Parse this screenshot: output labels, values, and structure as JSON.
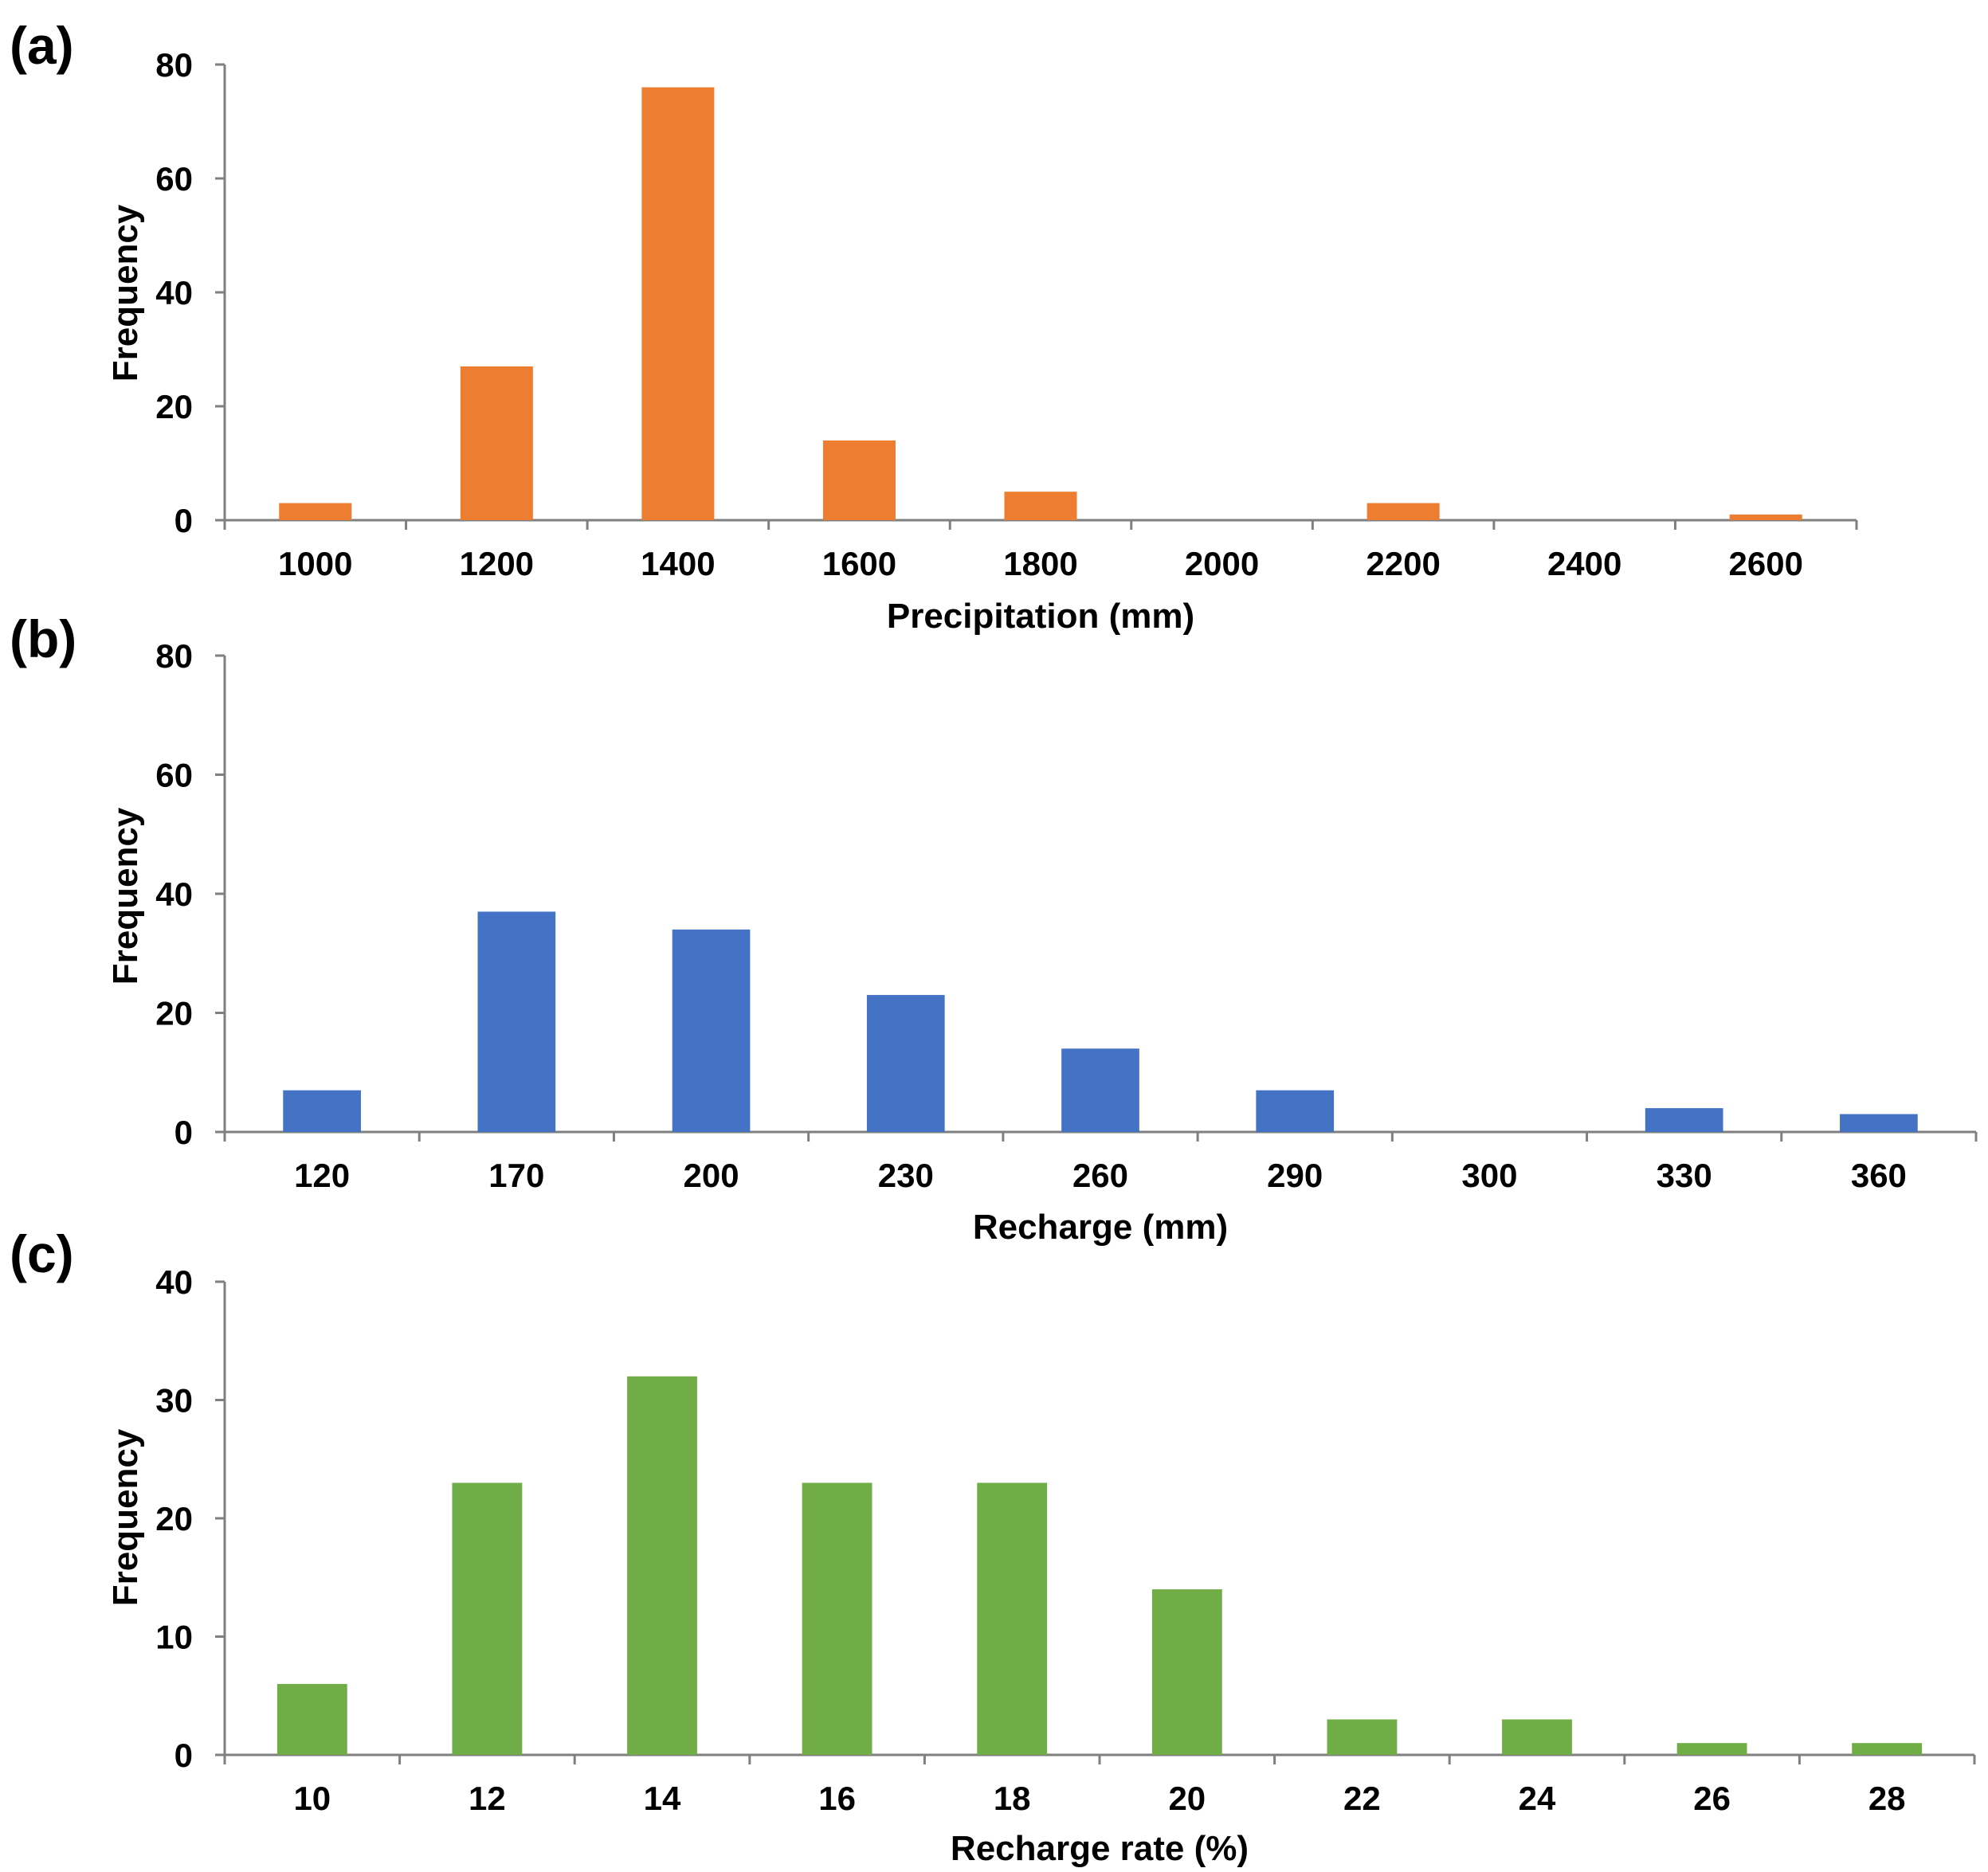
{
  "chart_data": [
    {
      "panel_label": "(a)",
      "type": "bar",
      "categories": [
        "1000",
        "1200",
        "1400",
        "1600",
        "1800",
        "2000",
        "2200",
        "2400",
        "2600"
      ],
      "values": [
        3,
        27,
        76,
        14,
        5,
        0,
        3,
        0,
        1
      ],
      "xlabel": "Precipitation (mm)",
      "ylabel": "Frequency",
      "ylim": [
        0,
        80
      ],
      "yticks": [
        0,
        20,
        40,
        60,
        80
      ],
      "color": "#ED7D31",
      "grid": false
    },
    {
      "panel_label": "(b)",
      "type": "bar",
      "categories": [
        "120",
        "170",
        "200",
        "230",
        "260",
        "290",
        "300",
        "330",
        "360"
      ],
      "values": [
        7,
        37,
        34,
        23,
        14,
        7,
        0,
        4,
        3
      ],
      "xlabel": "Recharge (mm)",
      "ylabel": "Frequency",
      "ylim": [
        0,
        80
      ],
      "yticks": [
        0,
        20,
        40,
        60,
        80
      ],
      "color": "#4472C4",
      "grid": false
    },
    {
      "panel_label": "(c)",
      "type": "bar",
      "categories": [
        "10",
        "12",
        "14",
        "16",
        "18",
        "20",
        "22",
        "24",
        "26",
        "28"
      ],
      "values": [
        6,
        23,
        32,
        23,
        23,
        14,
        3,
        3,
        1,
        1
      ],
      "xlabel": "Recharge rate (%)",
      "ylabel": "Frequency",
      "ylim": [
        0,
        40
      ],
      "yticks": [
        0,
        10,
        20,
        30,
        40
      ],
      "color": "#70AD47",
      "grid": false
    }
  ]
}
